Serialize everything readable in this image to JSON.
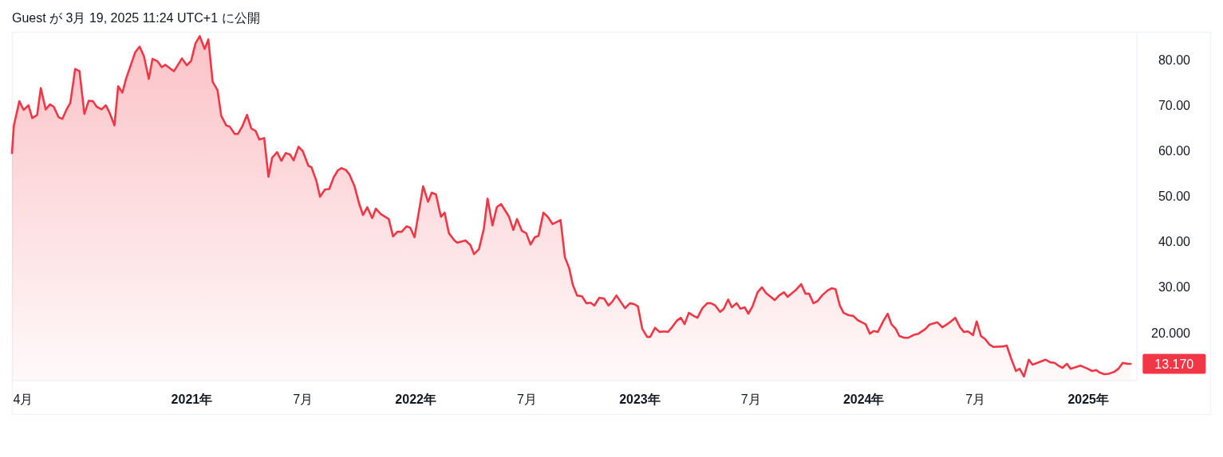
{
  "chart_data": {
    "type": "area",
    "color": "#f23645",
    "x": [
      "2020-03-14",
      "2020-03-17",
      "2020-03-26",
      "2020-04-02",
      "2020-04-10",
      "2020-04-16",
      "2020-04-24",
      "2020-04-30",
      "2020-05-08",
      "2020-05-15",
      "2020-05-21",
      "2020-05-29",
      "2020-06-04",
      "2020-06-11",
      "2020-06-17",
      "2020-06-25",
      "2020-07-02",
      "2020-07-10",
      "2020-07-17",
      "2020-07-24",
      "2020-07-30",
      "2020-08-07",
      "2020-08-14",
      "2020-08-20",
      "2020-08-28",
      "2020-09-03",
      "2020-09-10",
      "2020-09-16",
      "2020-10-01",
      "2020-10-08",
      "2020-10-15",
      "2020-10-23",
      "2020-10-29",
      "2020-11-06",
      "2020-11-13",
      "2020-11-19",
      "2020-12-03",
      "2020-12-16",
      "2020-12-24",
      "2020-12-31",
      "2021-01-07",
      "2021-01-14",
      "2021-01-22",
      "2021-01-28",
      "2021-02-04",
      "2021-02-12",
      "2021-02-18",
      "2021-02-26",
      "2021-03-04",
      "2021-03-12",
      "2021-03-17",
      "2021-03-24",
      "2021-04-01",
      "2021-04-08",
      "2021-04-15",
      "2021-04-21",
      "2021-04-29",
      "2021-05-06",
      "2021-05-12",
      "2021-05-20",
      "2021-05-27",
      "2021-06-03",
      "2021-06-10",
      "2021-06-16",
      "2021-06-24",
      "2021-07-01",
      "2021-07-10",
      "2021-07-15",
      "2021-07-23",
      "2021-07-29",
      "2021-08-06",
      "2021-08-13",
      "2021-08-20",
      "2021-08-27",
      "2021-09-02",
      "2021-09-09",
      "2021-09-15",
      "2021-09-23",
      "2021-10-01",
      "2021-10-07",
      "2021-10-14",
      "2021-10-22",
      "2021-10-28",
      "2021-11-05",
      "2021-11-18",
      "2021-11-25",
      "2021-12-02",
      "2021-12-09",
      "2021-12-17",
      "2021-12-23",
      "2021-12-30",
      "2022-01-13",
      "2022-01-21",
      "2022-01-27",
      "2022-02-03",
      "2022-02-11",
      "2022-02-17",
      "2022-02-24",
      "2022-03-05",
      "2022-03-10",
      "2022-03-23",
      "2022-03-31",
      "2022-04-06",
      "2022-04-14",
      "2022-04-22",
      "2022-04-28",
      "2022-05-06",
      "2022-05-13",
      "2022-05-20",
      "2022-06-02",
      "2022-06-09",
      "2022-06-15",
      "2022-06-23",
      "2022-06-30",
      "2022-07-07",
      "2022-07-14",
      "2022-07-20",
      "2022-07-28",
      "2022-08-04",
      "2022-08-12",
      "2022-08-25",
      "2022-09-01",
      "2022-09-08",
      "2022-09-14",
      "2022-09-21",
      "2022-09-29",
      "2022-10-06",
      "2022-10-13",
      "2022-10-19",
      "2022-10-27",
      "2022-11-04",
      "2022-11-11",
      "2022-11-17",
      "2022-11-24",
      "2022-12-08",
      "2022-12-16",
      "2022-12-23",
      "2022-12-29",
      "2023-01-05",
      "2023-01-13",
      "2023-01-18",
      "2023-01-26",
      "2023-02-02",
      "2023-02-10",
      "2023-02-16",
      "2023-02-23",
      "2023-03-02",
      "2023-03-09",
      "2023-03-15",
      "2023-03-22",
      "2023-03-30",
      "2023-04-05",
      "2023-04-13",
      "2023-04-21",
      "2023-04-27",
      "2023-05-04",
      "2023-05-12",
      "2023-05-18",
      "2023-05-25",
      "2023-05-31",
      "2023-06-08",
      "2023-06-14",
      "2023-06-21",
      "2023-06-27",
      "2023-07-04",
      "2023-07-12",
      "2023-07-19",
      "2023-07-26",
      "2023-08-09",
      "2023-08-16",
      "2023-08-24",
      "2023-08-30",
      "2023-09-13",
      "2023-09-21",
      "2023-09-28",
      "2023-10-04",
      "2023-10-11",
      "2023-10-18",
      "2023-10-25",
      "2023-11-03",
      "2023-11-10",
      "2023-11-16",
      "2023-11-23",
      "2023-11-29",
      "2023-12-07",
      "2023-12-15",
      "2023-12-22",
      "2023-12-29",
      "2024-01-04",
      "2024-01-11",
      "2024-01-17",
      "2024-01-24",
      "2024-02-02",
      "2024-02-09",
      "2024-02-15",
      "2024-02-22",
      "2024-02-28",
      "2024-03-07",
      "2024-03-13",
      "2024-03-22",
      "2024-03-30",
      "2024-04-11",
      "2024-04-17",
      "2024-04-30",
      "2024-05-08",
      "2024-05-16",
      "2024-05-22",
      "2024-05-29",
      "2024-06-06",
      "2024-06-12",
      "2024-06-19",
      "2024-06-27",
      "2024-07-03",
      "2024-07-10",
      "2024-07-17",
      "2024-07-24",
      "2024-07-30",
      "2024-08-15",
      "2024-08-21",
      "2024-08-28",
      "2024-09-05",
      "2024-09-11",
      "2024-09-18",
      "2024-09-26",
      "2024-10-02",
      "2024-10-10",
      "2024-10-23",
      "2024-10-31",
      "2024-11-07",
      "2024-11-14",
      "2024-11-20",
      "2024-11-27",
      "2024-12-03",
      "2024-12-19",
      "2024-12-24",
      "2024-12-31",
      "2025-01-07",
      "2025-01-14",
      "2025-01-19",
      "2025-01-27",
      "2025-02-03",
      "2025-02-12",
      "2025-02-19",
      "2025-02-26",
      "2025-03-05",
      "2025-03-11"
    ],
    "values": [
      59.5,
      65.5,
      70.9,
      69.0,
      70.0,
      67.2,
      67.9,
      73.8,
      69.1,
      70.2,
      69.7,
      67.4,
      67.0,
      69.1,
      70.5,
      78.0,
      77.5,
      68.1,
      71.0,
      70.9,
      69.7,
      69.1,
      70.0,
      68.4,
      65.6,
      74.2,
      72.8,
      75.9,
      81.7,
      82.9,
      80.8,
      75.8,
      80.2,
      79.7,
      78.4,
      78.9,
      77.5,
      80.3,
      78.8,
      79.8,
      83.6,
      85.2,
      82.4,
      84.5,
      75.2,
      73.3,
      67.7,
      65.6,
      65.3,
      63.7,
      63.7,
      65.3,
      67.9,
      64.9,
      64.4,
      62.5,
      62.8,
      54.3,
      58.5,
      59.7,
      57.8,
      59.5,
      59.2,
      57.9,
      60.9,
      59.9,
      56.7,
      56.4,
      53.4,
      49.9,
      51.5,
      51.6,
      54.1,
      55.7,
      56.2,
      55.8,
      54.8,
      52.3,
      48.3,
      45.9,
      47.6,
      45.2,
      47.3,
      46.1,
      45.0,
      41.2,
      42.2,
      42.2,
      43.4,
      43.1,
      41.0,
      52.2,
      48.8,
      50.8,
      50.4,
      45.5,
      46.4,
      41.9,
      40.3,
      39.8,
      40.3,
      39.3,
      37.3,
      38.4,
      42.9,
      49.5,
      43.6,
      47.6,
      48.3,
      45.5,
      42.6,
      45.0,
      42.4,
      41.9,
      39.4,
      41.0,
      41.3,
      46.4,
      45.5,
      43.9,
      44.8,
      36.6,
      34.2,
      30.5,
      28.2,
      28.0,
      26.5,
      26.6,
      26.0,
      27.7,
      27.5,
      26.0,
      26.8,
      28.2,
      25.4,
      26.5,
      26.3,
      25.8,
      20.9,
      19.1,
      19.1,
      21.1,
      20.2,
      20.3,
      20.2,
      21.3,
      22.6,
      23.3,
      21.9,
      24.4,
      23.7,
      23.3,
      25.4,
      26.5,
      26.5,
      26.0,
      24.6,
      25.3,
      27.3,
      25.6,
      26.5,
      25.3,
      25.6,
      24.2,
      25.9,
      28.9,
      30.0,
      28.7,
      27.2,
      28.2,
      28.9,
      27.9,
      29.5,
      30.7,
      28.6,
      28.6,
      26.5,
      27.0,
      28.2,
      29.3,
      29.8,
      29.6,
      26.0,
      24.4,
      23.9,
      23.7,
      22.8,
      22.3,
      21.9,
      19.8,
      20.4,
      20.2,
      22.6,
      24.2,
      21.9,
      20.9,
      19.3,
      18.9,
      18.9,
      19.5,
      19.8,
      20.9,
      21.8,
      22.3,
      21.2,
      21.9,
      22.5,
      23.3,
      21.2,
      20.2,
      20.3,
      19.5,
      22.5,
      19.3,
      18.6,
      17.4,
      16.9,
      17.0,
      17.2,
      14.4,
      11.6,
      12.1,
      10.4,
      14.1,
      13.0,
      13.4,
      14.1,
      13.5,
      13.4,
      12.7,
      12.3,
      13.2,
      12.1,
      12.8,
      12.5,
      12.1,
      11.6,
      11.8,
      11.3,
      10.9,
      11.0,
      11.4,
      12.1,
      13.4,
      13.2,
      13.17
    ],
    "xlim": [
      "2020-03-14",
      "2025-03-21"
    ],
    "ylim": [
      9.5,
      85.8
    ],
    "xticks": [
      {
        "value": "2020-04",
        "label": "4月"
      },
      {
        "value": "2021",
        "label": "**2021年**"
      },
      {
        "value": "2021-07",
        "label": "7月"
      },
      {
        "value": "2022",
        "label": "**2022年**"
      },
      {
        "value": "2022-07",
        "label": "7月"
      },
      {
        "value": "2023",
        "label": "**2023年**"
      },
      {
        "value": "2023-07",
        "label": "7月"
      },
      {
        "value": "2024",
        "label": "**2024年**"
      },
      {
        "value": "2024-07",
        "label": "7月"
      },
      {
        "value": "2025",
        "label": "**2025年**"
      }
    ],
    "yticks": [
      {
        "value": 20,
        "label": "20.000"
      },
      {
        "value": 30,
        "label": "30.00"
      },
      {
        "value": 40,
        "label": "40.00"
      },
      {
        "value": 50,
        "label": "50.00"
      },
      {
        "value": 60,
        "label": "60.00"
      },
      {
        "value": 70,
        "label": "70.00"
      },
      {
        "value": 80,
        "label": "80.00"
      }
    ],
    "annotations": [
      "Guest が 3月 19, 2025 11:24 UTC+1 に公開",
      {
        "text": "13.170",
        "x": "2025-03-11",
        "y": 13.17
      }
    ]
  }
}
